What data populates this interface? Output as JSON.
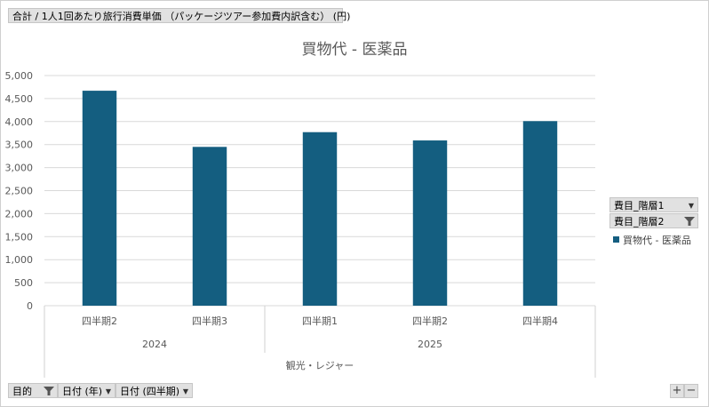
{
  "value_field_button": "合計 / 1人1回あたり旅行消費単価 （パッケージツアー参加費内訳含む） (円)",
  "legend_filters": [
    {
      "label": "費目_階層1",
      "icon": "chevron-down-icon"
    },
    {
      "label": "費目_階層2",
      "icon": "filter-icon"
    }
  ],
  "axis_filters": [
    {
      "label": "目的",
      "icon": "filter-icon"
    },
    {
      "label": "日付 (年)",
      "icon": "chevron-down-icon"
    },
    {
      "label": "日付 (四半期)",
      "icon": "chevron-down-icon"
    }
  ],
  "zoom": {
    "plus": "+",
    "minus": "−"
  },
  "colors": {
    "bar": "#145e80",
    "grid": "#d9d9d9"
  },
  "chart_data": {
    "type": "bar",
    "title": "買物代 - 医薬品",
    "categories": [
      "四半期2",
      "四半期3",
      "四半期1",
      "四半期2",
      "四半期4"
    ],
    "category_groups": [
      {
        "label": "2024",
        "span": 2
      },
      {
        "label": "2025",
        "span": 3
      }
    ],
    "outer_group": "観光・レジャー",
    "series": [
      {
        "name": "買物代 - 医薬品",
        "values": [
          4670,
          3450,
          3770,
          3590,
          4010
        ]
      }
    ],
    "ylim": [
      0,
      5000
    ],
    "yticks": [
      0,
      500,
      1000,
      1500,
      2000,
      2500,
      3000,
      3500,
      4000,
      4500,
      5000
    ],
    "grid": true,
    "legend": "right"
  }
}
